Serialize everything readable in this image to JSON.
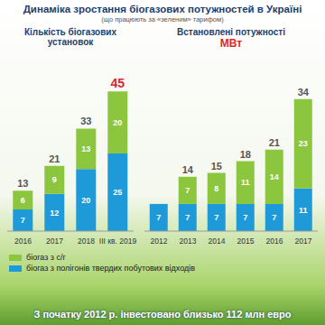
{
  "header": {
    "title": "Динаміка зростання біогазових потужностей в Україні",
    "subtitle": "(що працюють за «зеленим» тарифом)"
  },
  "chart_data": [
    {
      "type": "bar",
      "title": "Кількість біогазових установок",
      "categories": [
        "2016",
        "2017",
        "2018",
        "III кв. 2019"
      ],
      "series": [
        {
          "name": "біогаз з полігонів твердих побутових відходів",
          "color": "#1f9ad8",
          "values": [
            7,
            12,
            20,
            25
          ]
        },
        {
          "name": "біогаз з с/г",
          "color": "#8cc63f",
          "values": [
            6,
            9,
            13,
            20
          ]
        }
      ],
      "totals": [
        13,
        21,
        33,
        45
      ],
      "ylim": [
        0,
        50
      ],
      "stacked": true,
      "data_labels": true,
      "tick_labels": "x"
    },
    {
      "type": "bar",
      "title": "Встановлені потужності",
      "unit": "МВт",
      "categories": [
        "2012",
        "2013",
        "2014",
        "2015",
        "2016",
        "2017"
      ],
      "series": [
        {
          "name": "біогаз з полігонів твердих побутових відходів",
          "color": "#1f9ad8",
          "values": [
            7,
            7,
            7,
            7,
            7,
            11
          ]
        },
        {
          "name": "біогаз з с/г",
          "color": "#8cc63f",
          "values": [
            null,
            7,
            8,
            11,
            14,
            23
          ]
        }
      ],
      "totals": [
        null,
        14,
        15,
        18,
        21,
        34
      ],
      "ylim": [
        0,
        40
      ],
      "stacked": true,
      "data_labels": true,
      "tick_labels": "x"
    }
  ],
  "footer": "З початку 2012 р. інвестовано близько 112 млн евро"
}
